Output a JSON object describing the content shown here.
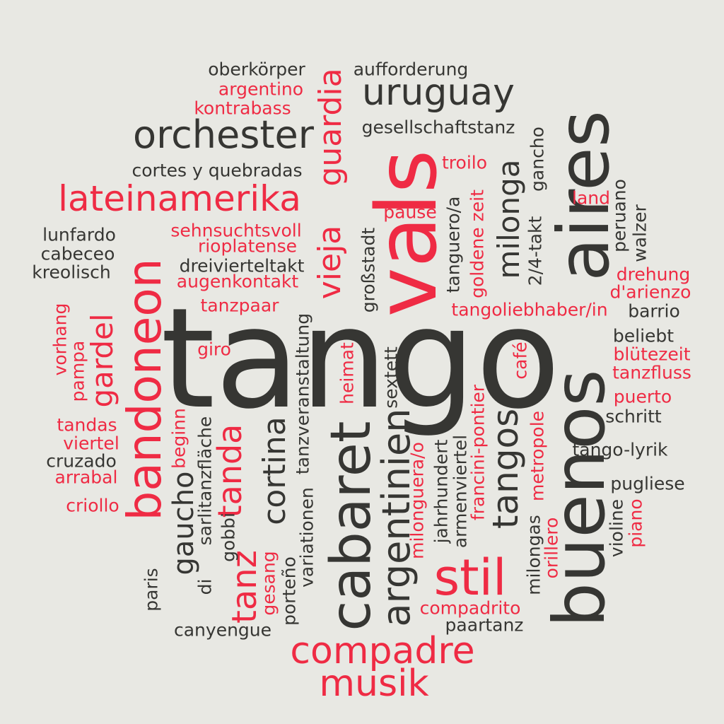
{
  "colors": {
    "background": "#e8e8e3",
    "dark": "#363633",
    "red": "#ef2b44"
  },
  "words": [
    "tango",
    "buenos",
    "aires",
    "vals",
    "cabaret",
    "argentinien",
    "bandoneon",
    "orchester",
    "uruguay",
    "lateinamerika",
    "vieja",
    "guardia",
    "milonga",
    "stil",
    "compadre",
    "musik",
    "tangos",
    "cortina",
    "tanda",
    "gaucho",
    "gardel",
    "tanz",
    "oberkörper",
    "aufforderung",
    "argentino",
    "kontrabass",
    "gesellschaftstanz",
    "cortes y quebradas",
    "troilo",
    "gancho",
    "land",
    "peruano",
    "walzer",
    "pause",
    "tanguero/a",
    "goldene zeit",
    "2/4-takt",
    "lunfardo",
    "sehnsuchtsvoll",
    "cabeceo",
    "rioplatense",
    "kreolisch",
    "dreivierteltakt",
    "augenkontakt",
    "drehung",
    "d'arienzo",
    "großstadt",
    "tangoliebhaber/in",
    "barrio",
    "tanzpaar",
    "vorhang",
    "pampa",
    "giro",
    "tanzveranstaltung",
    "beliebt",
    "heimat",
    "sextett",
    "café",
    "blütezeit",
    "tanzfluss",
    "puerto",
    "schritt",
    "tandas",
    "viertel",
    "beginn",
    "sarlitanzfläche",
    "cruzado",
    "arrabal",
    "criollo",
    "tango-lyrik",
    "francini-pontier",
    "metropole",
    "pugliese",
    "di",
    "milonguera/o",
    "jahrhundert",
    "armenviertel",
    "variationen",
    "gobbi",
    "violine",
    "piano",
    "paris",
    "gesang",
    "porteño",
    "milongas",
    "orillero",
    "compadrito",
    "paartanz",
    "canyengue"
  ]
}
